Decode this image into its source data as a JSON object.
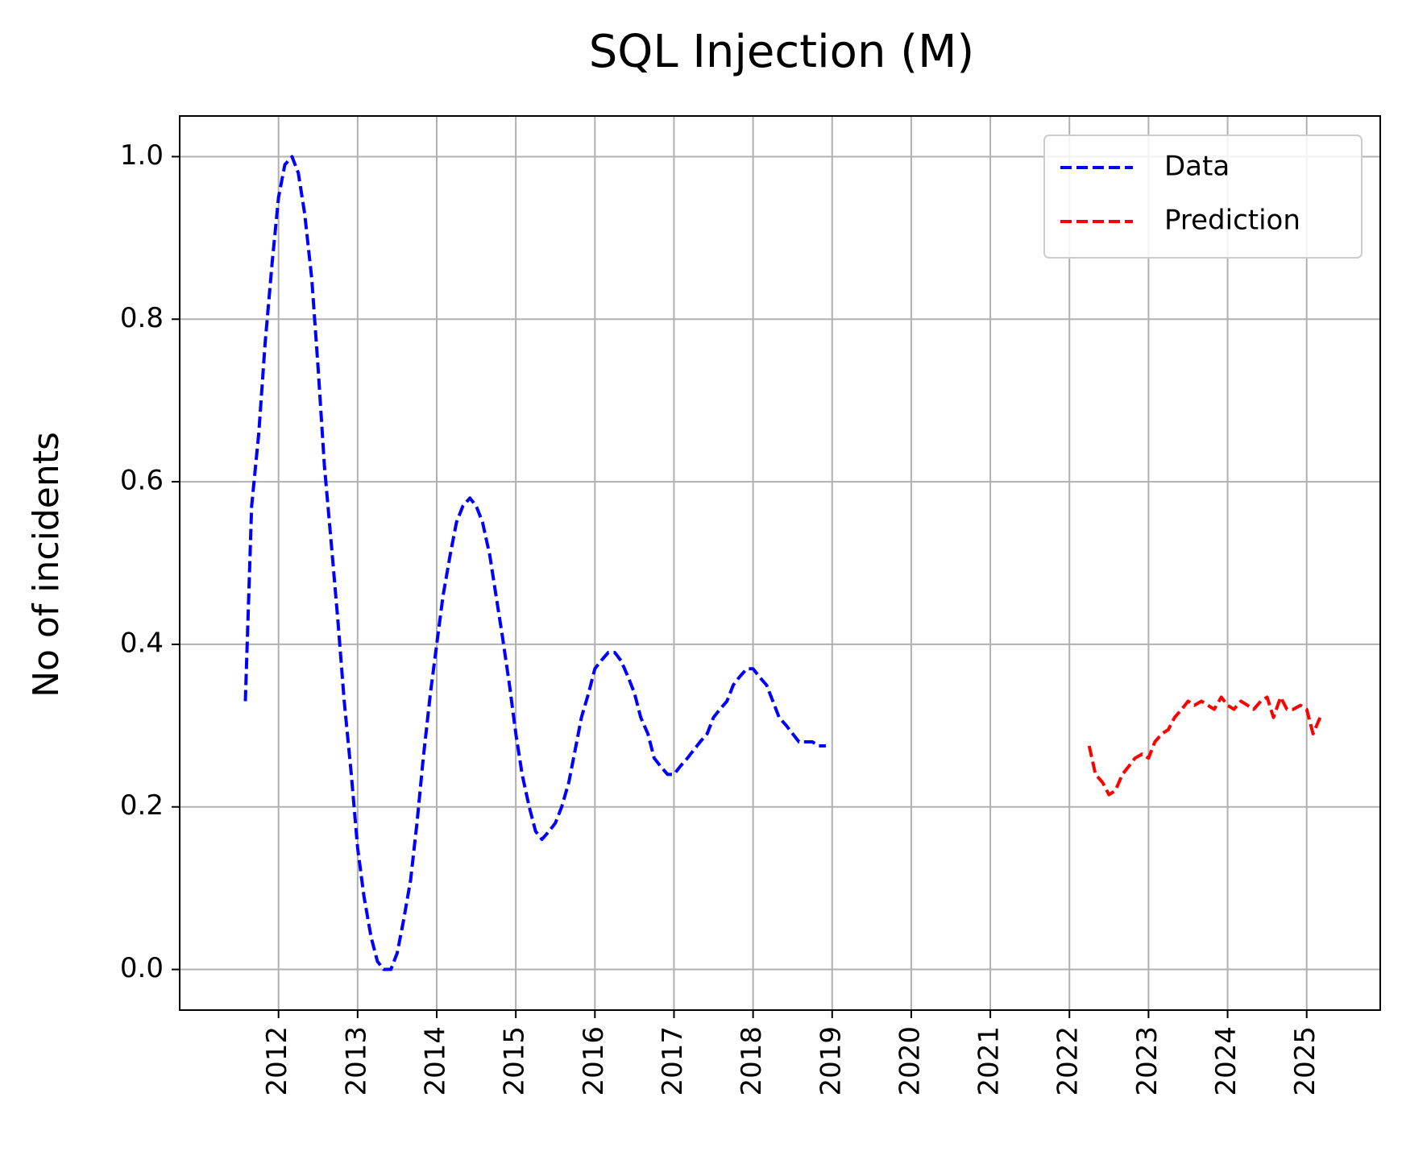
{
  "chart_data": {
    "type": "line",
    "title": "SQL Injection (M)",
    "xlabel": "",
    "ylabel": "No of incidents",
    "x_ticks": [
      "2012",
      "2013",
      "2014",
      "2015",
      "2016",
      "2017",
      "2018",
      "2019",
      "2020",
      "2021",
      "2022",
      "2023",
      "2024",
      "2025"
    ],
    "y_ticks": [
      "0.0",
      "0.2",
      "0.4",
      "0.6",
      "0.8",
      "1.0"
    ],
    "xlim": [
      2010.75,
      2025.93
    ],
    "ylim": [
      -0.05,
      1.05
    ],
    "grid": true,
    "legend_position": "top-right",
    "series": [
      {
        "name": "Data",
        "color": "#0000ff",
        "points": [
          [
            2011.58,
            0.33
          ],
          [
            2011.62,
            0.45
          ],
          [
            2011.66,
            0.57
          ],
          [
            2011.75,
            0.66
          ],
          [
            2011.83,
            0.77
          ],
          [
            2011.92,
            0.87
          ],
          [
            2012.0,
            0.95
          ],
          [
            2012.08,
            0.99
          ],
          [
            2012.17,
            1.0
          ],
          [
            2012.25,
            0.98
          ],
          [
            2012.33,
            0.93
          ],
          [
            2012.42,
            0.85
          ],
          [
            2012.5,
            0.74
          ],
          [
            2012.58,
            0.62
          ],
          [
            2012.67,
            0.52
          ],
          [
            2012.75,
            0.43
          ],
          [
            2012.83,
            0.33
          ],
          [
            2012.92,
            0.24
          ],
          [
            2013.0,
            0.15
          ],
          [
            2013.08,
            0.09
          ],
          [
            2013.17,
            0.04
          ],
          [
            2013.25,
            0.01
          ],
          [
            2013.33,
            0.0
          ],
          [
            2013.42,
            0.0
          ],
          [
            2013.5,
            0.02
          ],
          [
            2013.58,
            0.06
          ],
          [
            2013.67,
            0.11
          ],
          [
            2013.75,
            0.18
          ],
          [
            2013.83,
            0.26
          ],
          [
            2013.92,
            0.34
          ],
          [
            2014.0,
            0.4
          ],
          [
            2014.08,
            0.46
          ],
          [
            2014.17,
            0.51
          ],
          [
            2014.25,
            0.55
          ],
          [
            2014.33,
            0.57
          ],
          [
            2014.42,
            0.58
          ],
          [
            2014.5,
            0.57
          ],
          [
            2014.58,
            0.55
          ],
          [
            2014.67,
            0.51
          ],
          [
            2014.75,
            0.46
          ],
          [
            2014.83,
            0.41
          ],
          [
            2014.92,
            0.35
          ],
          [
            2015.0,
            0.29
          ],
          [
            2015.08,
            0.24
          ],
          [
            2015.17,
            0.2
          ],
          [
            2015.25,
            0.17
          ],
          [
            2015.33,
            0.16
          ],
          [
            2015.42,
            0.17
          ],
          [
            2015.5,
            0.18
          ],
          [
            2015.58,
            0.2
          ],
          [
            2015.67,
            0.23
          ],
          [
            2015.75,
            0.27
          ],
          [
            2015.83,
            0.31
          ],
          [
            2015.92,
            0.34
          ],
          [
            2016.0,
            0.37
          ],
          [
            2016.08,
            0.38
          ],
          [
            2016.17,
            0.39
          ],
          [
            2016.25,
            0.39
          ],
          [
            2016.33,
            0.38
          ],
          [
            2016.42,
            0.36
          ],
          [
            2016.5,
            0.34
          ],
          [
            2016.58,
            0.31
          ],
          [
            2016.67,
            0.29
          ],
          [
            2016.75,
            0.26
          ],
          [
            2016.83,
            0.25
          ],
          [
            2016.92,
            0.24
          ],
          [
            2017.0,
            0.24
          ],
          [
            2017.08,
            0.25
          ],
          [
            2017.17,
            0.26
          ],
          [
            2017.25,
            0.27
          ],
          [
            2017.33,
            0.28
          ],
          [
            2017.42,
            0.29
          ],
          [
            2017.5,
            0.31
          ],
          [
            2017.58,
            0.32
          ],
          [
            2017.67,
            0.33
          ],
          [
            2017.75,
            0.35
          ],
          [
            2017.83,
            0.36
          ],
          [
            2017.92,
            0.37
          ],
          [
            2018.0,
            0.37
          ],
          [
            2018.08,
            0.36
          ],
          [
            2018.17,
            0.35
          ],
          [
            2018.25,
            0.33
          ],
          [
            2018.33,
            0.31
          ],
          [
            2018.42,
            0.3
          ],
          [
            2018.5,
            0.29
          ],
          [
            2018.58,
            0.28
          ],
          [
            2018.67,
            0.28
          ],
          [
            2018.75,
            0.28
          ],
          [
            2018.83,
            0.275
          ],
          [
            2018.92,
            0.275
          ]
        ]
      },
      {
        "name": "Prediction",
        "color": "#ff0000",
        "points": [
          [
            2022.25,
            0.275
          ],
          [
            2022.33,
            0.24
          ],
          [
            2022.42,
            0.23
          ],
          [
            2022.5,
            0.215
          ],
          [
            2022.58,
            0.22
          ],
          [
            2022.67,
            0.24
          ],
          [
            2022.75,
            0.25
          ],
          [
            2022.83,
            0.26
          ],
          [
            2022.92,
            0.265
          ],
          [
            2023.0,
            0.26
          ],
          [
            2023.08,
            0.28
          ],
          [
            2023.17,
            0.29
          ],
          [
            2023.25,
            0.295
          ],
          [
            2023.33,
            0.31
          ],
          [
            2023.42,
            0.32
          ],
          [
            2023.5,
            0.33
          ],
          [
            2023.58,
            0.325
          ],
          [
            2023.67,
            0.33
          ],
          [
            2023.75,
            0.325
          ],
          [
            2023.83,
            0.32
          ],
          [
            2023.92,
            0.335
          ],
          [
            2024.0,
            0.325
          ],
          [
            2024.08,
            0.32
          ],
          [
            2024.17,
            0.33
          ],
          [
            2024.25,
            0.325
          ],
          [
            2024.33,
            0.32
          ],
          [
            2024.42,
            0.33
          ],
          [
            2024.5,
            0.335
          ],
          [
            2024.58,
            0.31
          ],
          [
            2024.67,
            0.335
          ],
          [
            2024.75,
            0.32
          ],
          [
            2024.83,
            0.32
          ],
          [
            2024.92,
            0.325
          ],
          [
            2025.0,
            0.32
          ],
          [
            2025.08,
            0.29
          ],
          [
            2025.17,
            0.31
          ]
        ]
      }
    ]
  }
}
